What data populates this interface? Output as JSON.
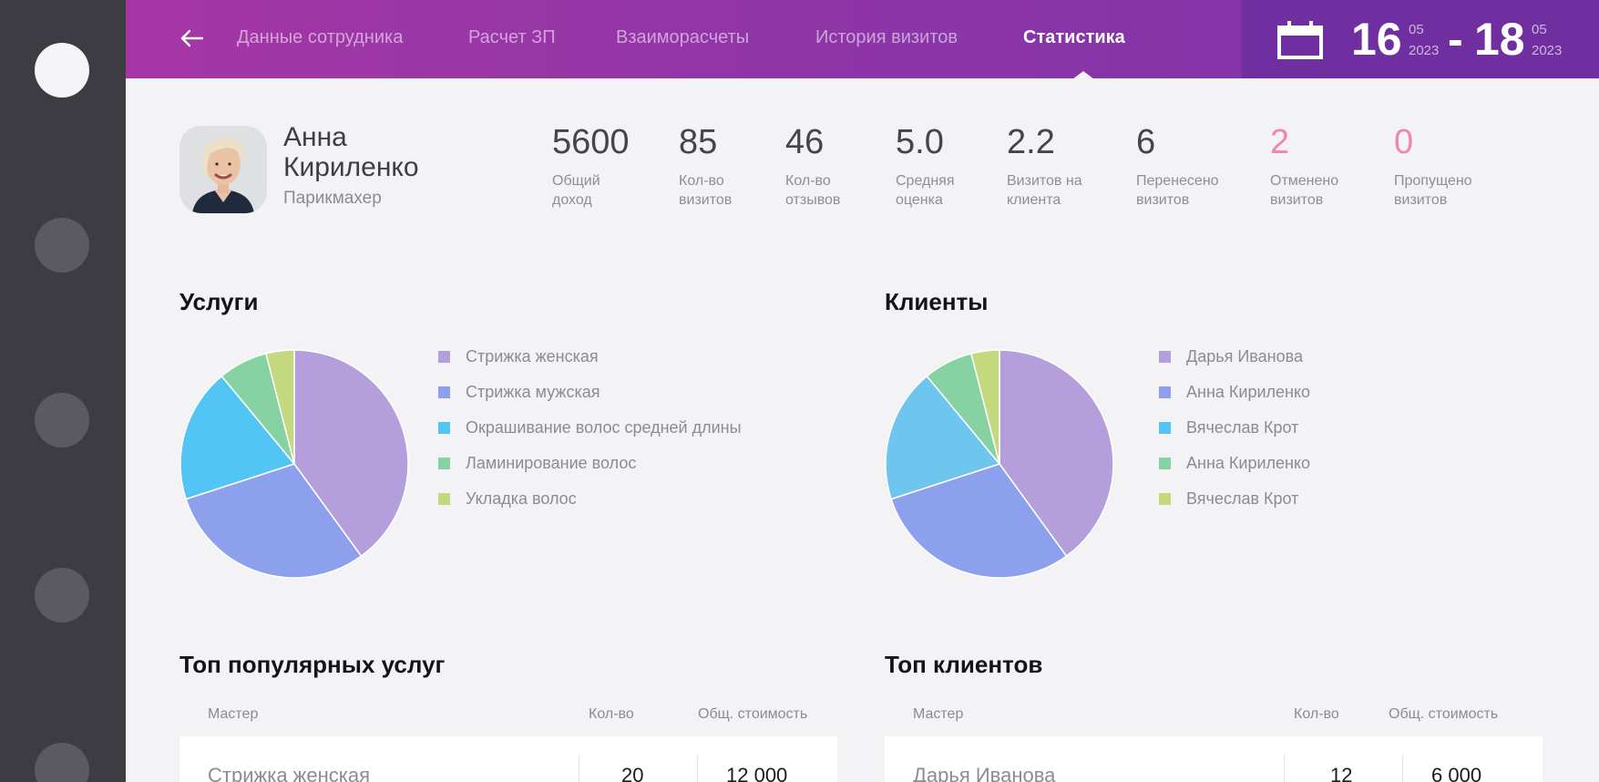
{
  "header": {
    "back_icon": "arrow-left-icon",
    "tabs": [
      {
        "label": "Данные сотрудника",
        "active": false
      },
      {
        "label": "Расчет ЗП",
        "active": false
      },
      {
        "label": "Взаиморасчеты",
        "active": false
      },
      {
        "label": "История визитов",
        "active": false
      },
      {
        "label": "Статистика",
        "active": true
      }
    ],
    "date_range": {
      "icon": "calendar-icon",
      "from_day": "16",
      "from_month": "05",
      "from_year": "2023",
      "separator": "-",
      "to_day": "18",
      "to_month": "05",
      "to_year": "2023"
    }
  },
  "employee": {
    "name": "Анна Кириленко",
    "role": "Парикмахер"
  },
  "stats": [
    {
      "value": "5600",
      "label": "Общий доход",
      "color": "#44444a"
    },
    {
      "value": "85",
      "label": "Кол-во визитов",
      "color": "#44444a"
    },
    {
      "value": "46",
      "label": "Кол-во отзывов",
      "color": "#44444a"
    },
    {
      "value": "5.0",
      "label": "Средняя оценка",
      "color": "#44444a"
    },
    {
      "value": "2.2",
      "label": "Визитов на клиента",
      "color": "#44444a"
    },
    {
      "value": "6",
      "label": "Перенесено визитов",
      "color": "#44444a"
    },
    {
      "value": "2",
      "label": "Отменено визитов",
      "color": "#ee86ad"
    },
    {
      "value": "0",
      "label": "Пропущено визитов",
      "color": "#ee86ad"
    }
  ],
  "services": {
    "title": "Услуги",
    "legend": [
      "Стрижка женская",
      "Стрижка мужская",
      "Окрашивание волос средней длины",
      "Ламинирование волос",
      "Укладка волос"
    ]
  },
  "clients": {
    "title": "Клиенты",
    "legend": [
      "Дарья Иванова",
      "Анна Кириленко",
      "Вячеслав Крот",
      "Анна Кириленко",
      "Вячеслав Крот"
    ]
  },
  "top_services": {
    "title": "Топ популярных услуг",
    "columns": [
      "Мастер",
      "Кол-во",
      "Общ. стоимость"
    ],
    "rows": [
      {
        "name": "Стрижка женская",
        "count": "20",
        "total": "12 000"
      }
    ]
  },
  "top_clients": {
    "title": "Топ клиентов",
    "columns": [
      "Мастер",
      "Кол-во",
      "Общ. стоимость"
    ],
    "rows": [
      {
        "name": "Дарья Иванова",
        "count": "12",
        "total": "6 000"
      }
    ]
  },
  "chart_data": [
    {
      "type": "pie",
      "title": "Услуги",
      "categories": [
        "Стрижка женская",
        "Стрижка мужская",
        "Окрашивание волос средней длины",
        "Ламинирование волос",
        "Укладка волос"
      ],
      "values": [
        40,
        30,
        19,
        7,
        4
      ],
      "colors": [
        "#b49fdc",
        "#8ca0ee",
        "#52c5f5",
        "#86d2a2",
        "#c4d97e"
      ]
    },
    {
      "type": "pie",
      "title": "Клиенты",
      "categories": [
        "Дарья Иванова",
        "Анна Кириленко",
        "Вячеслав Крот",
        "Анна Кириленко",
        "Вячеслав Крот"
      ],
      "values": [
        40,
        30,
        19,
        7,
        4
      ],
      "colors": [
        "#b49fdc",
        "#8ca0ee",
        "#6ec6ee",
        "#86d2a2",
        "#c4d97e"
      ]
    }
  ]
}
